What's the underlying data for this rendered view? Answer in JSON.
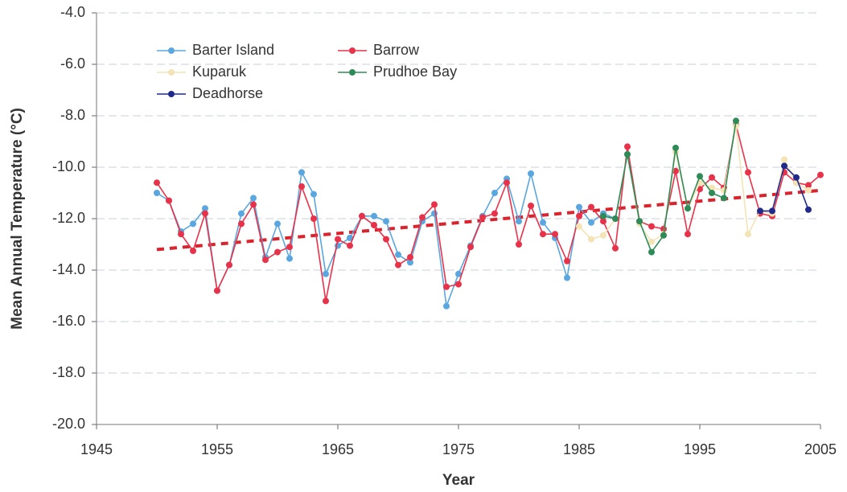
{
  "chart_data": {
    "type": "line",
    "x_label": "Year",
    "y_label": "Mean Annual Temperature (°C)",
    "x": [
      1950,
      1951,
      1952,
      1953,
      1954,
      1955,
      1956,
      1957,
      1958,
      1959,
      1960,
      1961,
      1962,
      1963,
      1964,
      1965,
      1966,
      1967,
      1968,
      1969,
      1970,
      1971,
      1972,
      1973,
      1974,
      1975,
      1976,
      1977,
      1978,
      1979,
      1980,
      1981,
      1982,
      1983,
      1984,
      1985,
      1986,
      1987,
      1988,
      1989,
      1990,
      1991,
      1992,
      1993,
      1994,
      1995,
      1996,
      1997,
      1998,
      1999,
      2000,
      2001,
      2002,
      2003,
      2004,
      2005
    ],
    "series": [
      {
        "name": "Barter Island",
        "color": "#5aa7e0",
        "values": [
          -11.0,
          -11.3,
          -12.5,
          -12.2,
          -11.6,
          -14.8,
          -13.8,
          -11.8,
          -11.2,
          -13.5,
          -12.2,
          -13.55,
          -10.2,
          -11.05,
          -14.15,
          -13.05,
          -12.75,
          -11.9,
          -11.9,
          -12.1,
          -13.4,
          -13.7,
          -12.1,
          -11.8,
          -15.4,
          -14.15,
          -13.05,
          -11.9,
          -11.0,
          -10.45,
          -12.1,
          -10.25,
          -12.15,
          -12.75,
          -14.3,
          -11.55,
          -12.15,
          -11.8,
          -12.0,
          -9.5,
          null,
          null,
          null,
          null,
          null,
          null,
          null,
          null,
          null,
          null,
          null,
          null,
          null,
          null,
          null,
          null
        ]
      },
      {
        "name": "Barrow",
        "color": "#e8324a",
        "values": [
          -10.6,
          -11.3,
          -12.6,
          -13.25,
          -11.8,
          -14.8,
          -13.8,
          -12.2,
          -11.45,
          -13.6,
          -13.3,
          -13.1,
          -10.75,
          -12.0,
          -15.2,
          -12.8,
          -13.05,
          -11.9,
          -12.25,
          -12.8,
          -13.8,
          -13.5,
          -11.95,
          -11.45,
          -14.65,
          -14.55,
          -13.1,
          -11.95,
          -11.8,
          -10.6,
          -13.0,
          -11.5,
          -12.6,
          -12.6,
          -13.65,
          -11.9,
          -11.55,
          -12.1,
          -13.15,
          -9.2,
          -12.1,
          -12.3,
          -12.4,
          -10.15,
          -12.6,
          -10.85,
          -10.4,
          -10.8,
          -8.35,
          -10.2,
          -11.8,
          -11.9,
          -10.2,
          -10.6,
          -10.7,
          -10.3
        ]
      },
      {
        "name": "Kuparuk",
        "color": "#f3e3b5",
        "values": [
          null,
          null,
          null,
          null,
          null,
          null,
          null,
          null,
          null,
          null,
          null,
          null,
          null,
          null,
          null,
          null,
          null,
          null,
          null,
          null,
          null,
          null,
          null,
          null,
          null,
          null,
          null,
          null,
          null,
          null,
          null,
          null,
          null,
          null,
          null,
          -12.3,
          -12.8,
          -12.65,
          -12.0,
          -9.5,
          -12.2,
          -12.9,
          -12.6,
          -9.4,
          -11.6,
          -10.6,
          -10.8,
          -10.9,
          -8.4,
          -12.6,
          -11.7,
          -11.8,
          -9.7,
          -10.6,
          -10.9,
          null
        ]
      },
      {
        "name": "Prudhoe Bay",
        "color": "#2e8b57",
        "values": [
          null,
          null,
          null,
          null,
          null,
          null,
          null,
          null,
          null,
          null,
          null,
          null,
          null,
          null,
          null,
          null,
          null,
          null,
          null,
          null,
          null,
          null,
          null,
          null,
          null,
          null,
          null,
          null,
          null,
          null,
          null,
          null,
          null,
          null,
          null,
          null,
          null,
          -11.9,
          -12.0,
          -9.5,
          -12.1,
          -13.3,
          -12.65,
          -9.25,
          -11.6,
          -10.35,
          -11.0,
          -11.2,
          -8.2,
          null,
          null,
          null,
          null,
          null,
          null,
          null
        ]
      },
      {
        "name": "Deadhorse",
        "color": "#1f2a8a",
        "values": [
          null,
          null,
          null,
          null,
          null,
          null,
          null,
          null,
          null,
          null,
          null,
          null,
          null,
          null,
          null,
          null,
          null,
          null,
          null,
          null,
          null,
          null,
          null,
          null,
          null,
          null,
          null,
          null,
          null,
          null,
          null,
          null,
          null,
          null,
          null,
          null,
          null,
          null,
          null,
          null,
          null,
          null,
          null,
          null,
          null,
          null,
          null,
          null,
          null,
          null,
          -11.7,
          -11.7,
          -9.95,
          -10.4,
          -11.65,
          null
        ]
      }
    ],
    "trend": {
      "x": [
        1950,
        2005
      ],
      "values": [
        -13.2,
        -10.9
      ],
      "color": "#d9232d"
    },
    "xlim": [
      1945,
      2005
    ],
    "xticks": [
      1945,
      1955,
      1965,
      1975,
      1985,
      1995,
      2005
    ],
    "ylim": [
      -20,
      -4
    ],
    "yticks": [
      {
        "value": -20,
        "label": "-20.0"
      },
      {
        "value": -18,
        "label": "-18.0"
      },
      {
        "value": -16,
        "label": "-16.0"
      },
      {
        "value": -14,
        "label": "-14.0"
      },
      {
        "value": -12,
        "label": "-12.0"
      },
      {
        "value": -10,
        "label": "-10.0"
      },
      {
        "value": -8,
        "label": "-8.0"
      },
      {
        "value": -6,
        "label": "-6.0"
      },
      {
        "value": -4,
        "label": "-4.0"
      }
    ],
    "grid": true,
    "legend": "upper left"
  }
}
